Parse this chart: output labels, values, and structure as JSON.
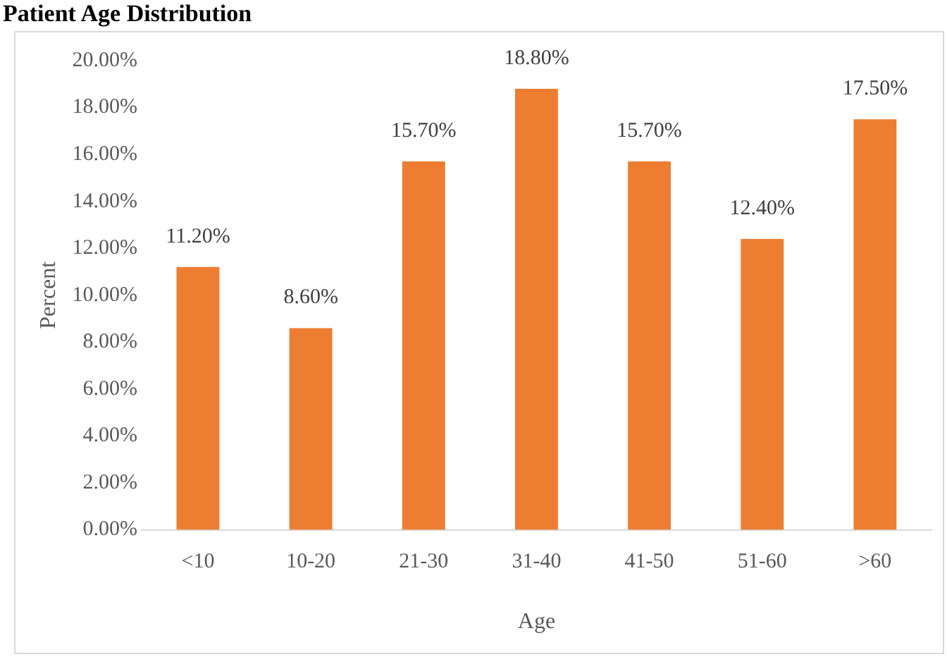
{
  "chart_data": {
    "type": "bar",
    "title": "Patient Age Distribution",
    "xlabel": "Age",
    "ylabel": "Percent",
    "categories": [
      "<10",
      "10-20",
      "21-30",
      "31-40",
      "41-50",
      "51-60",
      ">60"
    ],
    "values": [
      11.2,
      8.6,
      15.7,
      18.8,
      15.7,
      12.4,
      17.5
    ],
    "value_labels": [
      "11.20%",
      "8.60%",
      "15.70%",
      "18.80%",
      "15.70%",
      "12.40%",
      "17.50%"
    ],
    "color": "#ed7d31",
    "ylim": [
      0,
      20
    ],
    "yticks": [
      {
        "value": 0,
        "label": "0.00%"
      },
      {
        "value": 2,
        "label": "2.00%"
      },
      {
        "value": 4,
        "label": "4.00%"
      },
      {
        "value": 6,
        "label": "6.00%"
      },
      {
        "value": 8,
        "label": "8.00%"
      },
      {
        "value": 10,
        "label": "10.00%"
      },
      {
        "value": 12,
        "label": "12.00%"
      },
      {
        "value": 14,
        "label": "14.00%"
      },
      {
        "value": 16,
        "label": "16.00%"
      },
      {
        "value": 18,
        "label": "18.00%"
      },
      {
        "value": 20,
        "label": "20.00%"
      }
    ],
    "grid": false,
    "legend": false
  }
}
